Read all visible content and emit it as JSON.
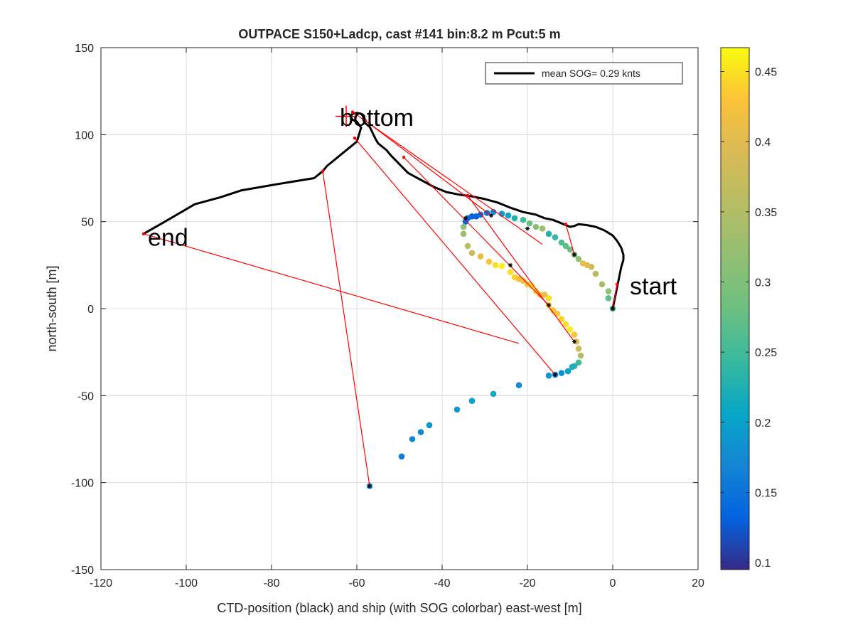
{
  "chart_data": {
    "type": "scatter",
    "title": "OUTPACE S150+Ladcp, cast #141 bin:8.2 m  Pcut:5 m",
    "xlabel": "CTD-position (black) and ship (with SOG colorbar) east-west [m]",
    "ylabel": "north-south [m]",
    "xlim": [
      -120,
      20
    ],
    "ylim": [
      -150,
      150
    ],
    "xticks": [
      -120,
      -100,
      -80,
      -60,
      -40,
      -20,
      0,
      20
    ],
    "yticks": [
      -150,
      -100,
      -50,
      0,
      50,
      100,
      150
    ],
    "xtick_labels": [
      "-120",
      "-100",
      "-80",
      "-60",
      "-40",
      "-20",
      "0",
      "20"
    ],
    "ytick_labels": [
      "-150",
      "-100",
      "-50",
      "0",
      "50",
      "100",
      "150"
    ],
    "grid": true,
    "legend": {
      "label": "mean SOG=  0.29 knts",
      "placement": "top-right"
    },
    "colorbar": {
      "range": [
        0.095,
        0.467
      ],
      "ticks": [
        0.1,
        0.15,
        0.2,
        0.25,
        0.3,
        0.35,
        0.4,
        0.45
      ],
      "tick_labels": [
        "0.1",
        "0.15",
        "0.2",
        "0.25",
        "0.3",
        "0.35",
        "0.4",
        "0.45"
      ],
      "colormap": "parula"
    },
    "annotations": [
      {
        "text": "start",
        "x": 4,
        "y": 13
      },
      {
        "text": "bottom",
        "x": -64,
        "y": 110
      },
      {
        "text": "end",
        "x": -109,
        "y": 41
      }
    ],
    "bottom_marker": {
      "x": -62.5,
      "y": 110.5
    },
    "ctd_track": {
      "color": "#000000",
      "x": [
        0,
        0.5,
        1,
        1.5,
        2,
        2.5,
        2.5,
        2,
        1,
        0,
        -2,
        -4,
        -6,
        -8,
        -9,
        -10,
        -11,
        -12,
        -14,
        -16,
        -18,
        -21,
        -24,
        -27,
        -30,
        -33,
        -36,
        -39,
        -42,
        -45,
        -48,
        -50,
        -52,
        -53,
        -54,
        -55,
        -55.5,
        -56,
        -56.5,
        -57,
        -58,
        -58.5,
        -58.5,
        -59,
        -60,
        -61,
        -61.5,
        -61,
        -60,
        -59,
        -59.5,
        -60,
        -61.5,
        -63,
        -65,
        -67,
        -68,
        -70,
        -75,
        -80,
        -87,
        -92,
        -98,
        -105,
        -110
      ],
      "y": [
        0,
        6,
        12,
        18,
        24,
        28,
        31,
        35,
        39,
        42,
        45,
        47,
        48,
        48.5,
        47.5,
        47,
        48,
        49,
        51,
        52,
        54,
        55.5,
        58,
        61,
        63,
        64.5,
        65.5,
        67,
        70,
        74,
        78,
        83,
        88,
        91,
        93,
        95,
        97,
        99.5,
        102,
        104.5,
        106.5,
        108.5,
        110.5,
        112,
        112.5,
        112,
        110.5,
        108.5,
        107.5,
        104,
        100,
        96,
        93,
        90,
        86,
        82,
        79,
        75,
        73,
        71,
        68,
        64,
        60,
        50,
        43
      ]
    },
    "link_lines": {
      "color": "#ff0000",
      "segments": [
        [
          [
            0,
            0
          ],
          [
            1,
            14
          ]
        ],
        [
          [
            -9,
            31
          ],
          [
            -11,
            48.5
          ]
        ],
        [
          [
            -9,
            -19
          ],
          [
            -34,
            65
          ]
        ],
        [
          [
            -15,
            2
          ],
          [
            -49,
            87
          ]
        ],
        [
          [
            -28.5,
            53.5
          ],
          [
            -58,
            108
          ]
        ],
        [
          [
            -16.5,
            37
          ],
          [
            -61,
            113
          ]
        ],
        [
          [
            -13.5,
            -38
          ],
          [
            -60.5,
            98
          ]
        ],
        [
          [
            -57,
            -102
          ],
          [
            -68,
            79
          ]
        ],
        [
          [
            -22,
            -20
          ],
          [
            -110,
            43
          ]
        ]
      ]
    },
    "ship_positions": {
      "x": [
        0,
        -1,
        -1,
        -2.5,
        -4,
        -5,
        -6,
        -7,
        -8,
        -9,
        -10,
        -11,
        -12,
        -13.5,
        -15,
        -16.5,
        -18,
        -19.5,
        -21,
        -23,
        -24.5,
        -26,
        -28,
        -29.5,
        -31,
        -32,
        -33,
        -34,
        -34.5,
        -35,
        -35,
        -34,
        -33,
        -31,
        -29,
        -27.5,
        -26,
        -24,
        -23,
        -22,
        -21,
        -20,
        -19,
        -18,
        -17,
        -16,
        -15,
        -15,
        -14,
        -13,
        -12,
        -11,
        -10,
        -9,
        -8.5,
        -8,
        -7.5,
        -8,
        -9,
        -9.5,
        -10.5,
        -12,
        -13.5,
        -15,
        -22,
        -28,
        -33,
        -36.5,
        -43,
        -45,
        -47,
        -49.5,
        -57
      ],
      "y": [
        0,
        6,
        10,
        14,
        20,
        24,
        25,
        26,
        28.5,
        31,
        34,
        36,
        38,
        41,
        43,
        46,
        47,
        49,
        51,
        52,
        53.5,
        54.5,
        55.5,
        55,
        54,
        53,
        53,
        52,
        50,
        47,
        43,
        36,
        32,
        30,
        27,
        25,
        24.5,
        21,
        18,
        17,
        16,
        14,
        13,
        10,
        8,
        8,
        6,
        2,
        -1,
        -3,
        -6,
        -9,
        -12,
        -15,
        -19,
        -23,
        -27,
        -31,
        -33,
        -33.5,
        -36,
        -37,
        -38,
        -38.5,
        -44,
        -49,
        -53,
        -58,
        -67,
        -71,
        -75,
        -85,
        -102
      ],
      "sog": [
        0.24,
        0.27,
        0.31,
        0.33,
        0.36,
        0.38,
        0.4,
        0.41,
        0.32,
        0.3,
        0.28,
        0.27,
        0.26,
        0.24,
        0.23,
        0.33,
        0.31,
        0.28,
        0.25,
        0.23,
        0.2,
        0.19,
        0.17,
        0.15,
        0.14,
        0.13,
        0.13,
        0.14,
        0.14,
        0.32,
        0.33,
        0.36,
        0.38,
        0.41,
        0.43,
        0.45,
        0.46,
        0.45,
        0.44,
        0.42,
        0.42,
        0.43,
        0.45,
        0.44,
        0.42,
        0.41,
        0.45,
        0.44,
        0.43,
        0.43,
        0.44,
        0.45,
        0.46,
        0.43,
        0.4,
        0.38,
        0.35,
        0.25,
        0.23,
        0.22,
        0.2,
        0.18,
        0.17,
        0.19,
        0.18,
        0.21,
        0.2,
        0.19,
        0.19,
        0.17,
        0.17,
        0.16,
        0.2
      ]
    },
    "black_markers": {
      "x": [
        0,
        -9,
        -15,
        -9,
        -13.5,
        -28.5,
        -20,
        -24,
        -34.5,
        -57
      ],
      "y": [
        0,
        31,
        2,
        -19,
        -38,
        53.5,
        46,
        25,
        52,
        -102
      ]
    }
  }
}
